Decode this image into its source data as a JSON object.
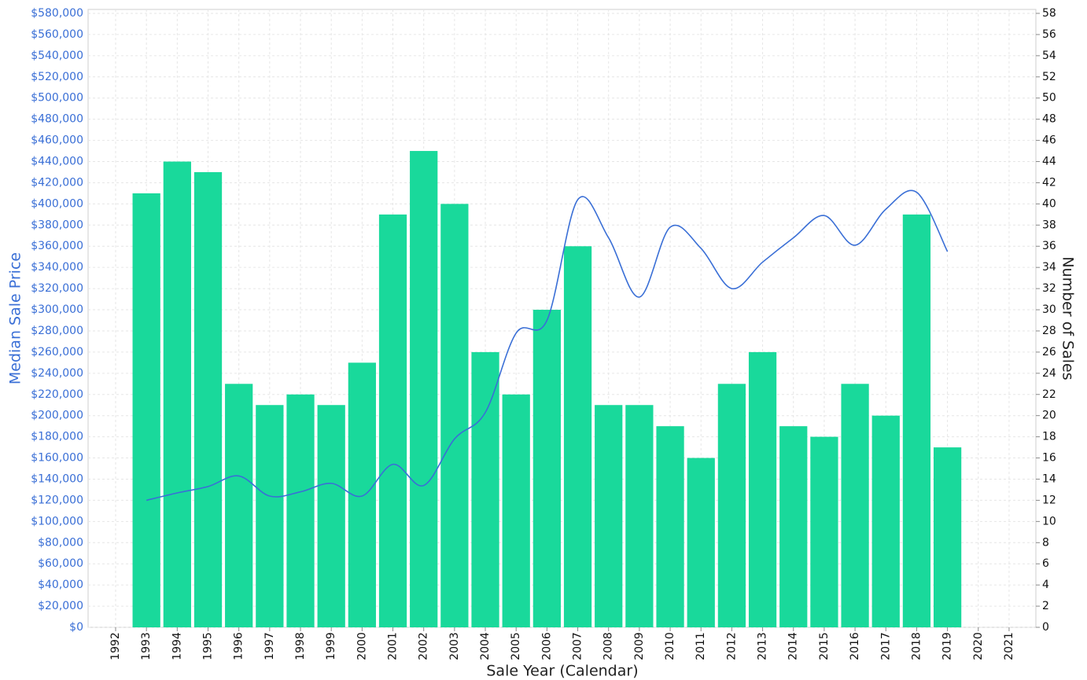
{
  "chart_data": {
    "type": "bar-line",
    "xlabel": "Sale Year (Calendar)",
    "categories": [
      "1992",
      "1993",
      "1994",
      "1995",
      "1996",
      "1997",
      "1998",
      "1999",
      "2000",
      "2001",
      "2002",
      "2003",
      "2004",
      "2005",
      "2006",
      "2007",
      "2008",
      "2009",
      "2010",
      "2011",
      "2012",
      "2013",
      "2014",
      "2015",
      "2016",
      "2017",
      "2018",
      "2019",
      "2020",
      "2021"
    ],
    "series": [
      {
        "name": "Number of Sales",
        "type": "bar",
        "axis": "y2",
        "color": "#19d99b",
        "values": [
          null,
          41,
          44,
          43,
          23,
          21,
          22,
          21,
          25,
          39,
          45,
          40,
          26,
          22,
          30,
          36,
          21,
          21,
          19,
          16,
          23,
          26,
          19,
          18,
          23,
          20,
          39,
          17,
          null,
          null
        ]
      },
      {
        "name": "Median Sale Price",
        "type": "line",
        "color": "#3a6fd6",
        "values": [
          null,
          120000,
          127000,
          133000,
          143000,
          124000,
          128000,
          136000,
          124000,
          154000,
          134000,
          178000,
          203000,
          278000,
          290000,
          404000,
          368000,
          312000,
          378000,
          358000,
          320000,
          345000,
          368000,
          389000,
          361000,
          395000,
          411000,
          355000,
          null,
          null
        ]
      }
    ],
    "ylim": [
      0,
      580000
    ],
    "yticks": [
      {
        "value": 0,
        "label": "$0"
      },
      {
        "value": 20000,
        "label": "$20,000"
      },
      {
        "value": 40000,
        "label": "$40,000"
      },
      {
        "value": 60000,
        "label": "$60,000"
      },
      {
        "value": 80000,
        "label": "$80,000"
      },
      {
        "value": 100000,
        "label": "$100,000"
      },
      {
        "value": 120000,
        "label": "$120,000"
      },
      {
        "value": 140000,
        "label": "$140,000"
      },
      {
        "value": 160000,
        "label": "$160,000"
      },
      {
        "value": 180000,
        "label": "$180,000"
      },
      {
        "value": 200000,
        "label": "$200,000"
      },
      {
        "value": 220000,
        "label": "$220,000"
      },
      {
        "value": 240000,
        "label": "$240,000"
      },
      {
        "value": 260000,
        "label": "$260,000"
      },
      {
        "value": 280000,
        "label": "$280,000"
      },
      {
        "value": 300000,
        "label": "$300,000"
      },
      {
        "value": 320000,
        "label": "$320,000"
      },
      {
        "value": 340000,
        "label": "$340,000"
      },
      {
        "value": 360000,
        "label": "$360,000"
      },
      {
        "value": 380000,
        "label": "$380,000"
      },
      {
        "value": 400000,
        "label": "$400,000"
      },
      {
        "value": 420000,
        "label": "$420,000"
      },
      {
        "value": 440000,
        "label": "$440,000"
      },
      {
        "value": 460000,
        "label": "$460,000"
      },
      {
        "value": 480000,
        "label": "$480,000"
      },
      {
        "value": 500000,
        "label": "$500,000"
      },
      {
        "value": 520000,
        "label": "$520,000"
      },
      {
        "value": 540000,
        "label": "$540,000"
      },
      {
        "value": 560000,
        "label": "$560,000"
      },
      {
        "value": 580000,
        "label": "$580,000"
      }
    ],
    "y2lim": [
      0,
      58
    ],
    "y2ticks": [
      0,
      2,
      4,
      6,
      8,
      10,
      12,
      14,
      16,
      18,
      20,
      22,
      24,
      26,
      28,
      30,
      32,
      34,
      36,
      38,
      40,
      42,
      44,
      46,
      48,
      50,
      52,
      54,
      56,
      58
    ],
    "grid": true,
    "smooth": true
  }
}
